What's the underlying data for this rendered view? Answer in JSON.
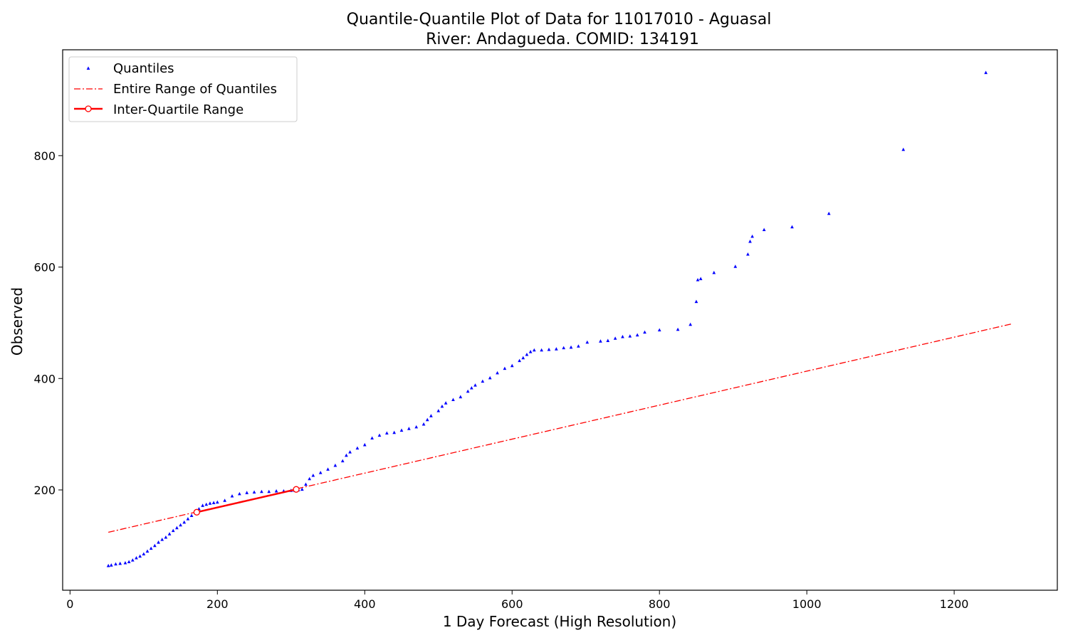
{
  "chart_data": {
    "type": "scatter",
    "title": "Quantile-Quantile Plot of Data for 11017010 - Aguasal",
    "subtitle": "River: Andagueda. COMID: 134191",
    "xlabel": "1 Day Forecast (High Resolution)",
    "ylabel": "Observed",
    "xlim": [
      -10,
      1340
    ],
    "ylim": [
      20,
      990
    ],
    "xticks": [
      0,
      200,
      400,
      600,
      800,
      1000,
      1200
    ],
    "yticks": [
      200,
      400,
      600,
      800
    ],
    "grid": false,
    "legend_position": "top-left",
    "colors": {
      "quantiles": "#0000ff",
      "entire_range": "#ff0000",
      "iqr": "#ff0000"
    },
    "series": [
      {
        "name": "Quantiles",
        "marker": "triangle",
        "points": [
          [
            52,
            64
          ],
          [
            56,
            65
          ],
          [
            62,
            67
          ],
          [
            68,
            68
          ],
          [
            75,
            69
          ],
          [
            80,
            71
          ],
          [
            85,
            74
          ],
          [
            90,
            78
          ],
          [
            95,
            81
          ],
          [
            100,
            85
          ],
          [
            105,
            90
          ],
          [
            110,
            95
          ],
          [
            115,
            100
          ],
          [
            120,
            106
          ],
          [
            125,
            111
          ],
          [
            130,
            115
          ],
          [
            135,
            121
          ],
          [
            140,
            127
          ],
          [
            145,
            132
          ],
          [
            150,
            137
          ],
          [
            155,
            142
          ],
          [
            160,
            148
          ],
          [
            165,
            154
          ],
          [
            170,
            160
          ],
          [
            175,
            166
          ],
          [
            180,
            172
          ],
          [
            185,
            174
          ],
          [
            190,
            176
          ],
          [
            195,
            177
          ],
          [
            200,
            178
          ],
          [
            210,
            181
          ],
          [
            220,
            189
          ],
          [
            230,
            193
          ],
          [
            240,
            195
          ],
          [
            250,
            196
          ],
          [
            260,
            197
          ],
          [
            270,
            197
          ],
          [
            280,
            198
          ],
          [
            290,
            198
          ],
          [
            300,
            199
          ],
          [
            305,
            199
          ],
          [
            310,
            200
          ],
          [
            315,
            201
          ],
          [
            320,
            210
          ],
          [
            325,
            220
          ],
          [
            330,
            226
          ],
          [
            340,
            231
          ],
          [
            350,
            237
          ],
          [
            360,
            244
          ],
          [
            370,
            252
          ],
          [
            375,
            262
          ],
          [
            380,
            268
          ],
          [
            390,
            275
          ],
          [
            400,
            281
          ],
          [
            410,
            293
          ],
          [
            420,
            298
          ],
          [
            430,
            302
          ],
          [
            440,
            303
          ],
          [
            450,
            307
          ],
          [
            460,
            310
          ],
          [
            470,
            313
          ],
          [
            480,
            318
          ],
          [
            485,
            326
          ],
          [
            490,
            333
          ],
          [
            500,
            342
          ],
          [
            505,
            350
          ],
          [
            510,
            356
          ],
          [
            520,
            362
          ],
          [
            530,
            367
          ],
          [
            540,
            377
          ],
          [
            545,
            383
          ],
          [
            550,
            388
          ],
          [
            560,
            395
          ],
          [
            570,
            401
          ],
          [
            580,
            410
          ],
          [
            590,
            418
          ],
          [
            600,
            423
          ],
          [
            610,
            432
          ],
          [
            615,
            437
          ],
          [
            620,
            443
          ],
          [
            625,
            448
          ],
          [
            630,
            451
          ],
          [
            640,
            451
          ],
          [
            650,
            452
          ],
          [
            660,
            453
          ],
          [
            670,
            455
          ],
          [
            680,
            456
          ],
          [
            690,
            458
          ],
          [
            702,
            465
          ],
          [
            720,
            467
          ],
          [
            730,
            468
          ],
          [
            740,
            472
          ],
          [
            750,
            475
          ],
          [
            760,
            476
          ],
          [
            770,
            478
          ],
          [
            780,
            483
          ],
          [
            800,
            487
          ],
          [
            825,
            488
          ],
          [
            842,
            497
          ],
          [
            850,
            538
          ],
          [
            852,
            577
          ],
          [
            856,
            579
          ],
          [
            874,
            590
          ],
          [
            903,
            601
          ],
          [
            920,
            623
          ],
          [
            923,
            646
          ],
          [
            926,
            655
          ],
          [
            942,
            667
          ],
          [
            980,
            672
          ],
          [
            1030,
            696
          ],
          [
            1131,
            811
          ],
          [
            1243,
            949
          ]
        ]
      },
      {
        "name": "Entire Range of Quantiles",
        "style": "dash-dot",
        "points": [
          [
            52,
            124
          ],
          [
            1278,
            498
          ]
        ]
      },
      {
        "name": "Inter-Quartile Range",
        "style": "solid",
        "marker": "circle",
        "points": [
          [
            172,
            160
          ],
          [
            307,
            201
          ]
        ]
      }
    ]
  }
}
